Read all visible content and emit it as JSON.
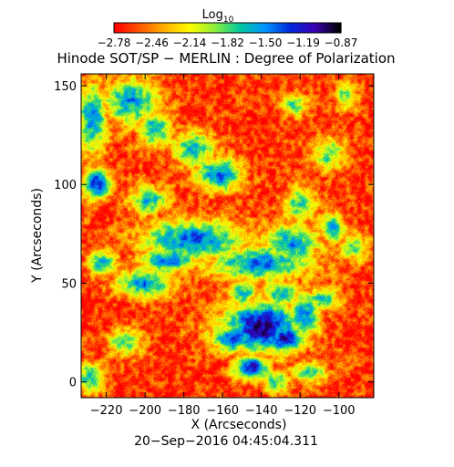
{
  "chart_data": {
    "type": "heatmap",
    "title": "Hinode SOT/SP − MERLIN : Degree of Polarization",
    "colorbar": {
      "label_base": "Log",
      "label_sub": "10",
      "tick_labels": [
        "−2.78",
        "−2.46",
        "−2.14",
        "−1.82",
        "−1.50",
        "−1.19",
        "−0.87"
      ],
      "range": [
        -2.78,
        -0.87
      ],
      "colormap": [
        "#ff0000",
        "#ff5a00",
        "#ffb400",
        "#ffff00",
        "#8cf03c",
        "#00c8a0",
        "#0096ff",
        "#0028dc",
        "#3c00b4",
        "#000000"
      ]
    },
    "xlabel": "X (Arcseconds)",
    "ylabel": "Y (Arcseconds)",
    "xlim": [
      -233,
      -82
    ],
    "ylim": [
      -8,
      156
    ],
    "xticks": [
      -220,
      -200,
      -180,
      -160,
      -140,
      -120,
      -100
    ],
    "xtick_labels": [
      "−220",
      "−200",
      "−180",
      "−160",
      "−140",
      "−120",
      "−100"
    ],
    "yticks": [
      0,
      50,
      100,
      150
    ],
    "ytick_labels": [
      "0",
      "50",
      "100",
      "150"
    ],
    "background_level": -2.65,
    "structures": [
      {
        "x": -140,
        "y": 28,
        "sx": 14,
        "sy": 9,
        "level": -1.05
      },
      {
        "x": -128,
        "y": 22,
        "sx": 7,
        "sy": 5,
        "level": -1.15
      },
      {
        "x": -155,
        "y": 22,
        "sx": 8,
        "sy": 5,
        "level": -1.4
      },
      {
        "x": -145,
        "y": 7,
        "sx": 6,
        "sy": 4,
        "level": -1.1
      },
      {
        "x": -175,
        "y": 72,
        "sx": 18,
        "sy": 7,
        "level": -1.4
      },
      {
        "x": -140,
        "y": 60,
        "sx": 18,
        "sy": 6,
        "level": -1.45
      },
      {
        "x": -125,
        "y": 70,
        "sx": 10,
        "sy": 7,
        "level": -1.5
      },
      {
        "x": -188,
        "y": 62,
        "sx": 10,
        "sy": 5,
        "level": -1.5
      },
      {
        "x": -200,
        "y": 50,
        "sx": 10,
        "sy": 5,
        "level": -1.55
      },
      {
        "x": -162,
        "y": 105,
        "sx": 8,
        "sy": 6,
        "level": -1.4
      },
      {
        "x": -225,
        "y": 100,
        "sx": 5,
        "sy": 5,
        "level": -1.2
      },
      {
        "x": -227,
        "y": 133,
        "sx": 5,
        "sy": 12,
        "level": -1.5
      },
      {
        "x": -207,
        "y": 142,
        "sx": 10,
        "sy": 8,
        "level": -1.55
      },
      {
        "x": -195,
        "y": 128,
        "sx": 6,
        "sy": 6,
        "level": -1.6
      },
      {
        "x": -175,
        "y": 118,
        "sx": 8,
        "sy": 6,
        "level": -1.65
      },
      {
        "x": -198,
        "y": 92,
        "sx": 7,
        "sy": 5,
        "level": -1.7
      },
      {
        "x": -222,
        "y": 60,
        "sx": 5,
        "sy": 4,
        "level": -1.55
      },
      {
        "x": -210,
        "y": 20,
        "sx": 6,
        "sy": 5,
        "level": -1.8
      },
      {
        "x": -228,
        "y": 2,
        "sx": 5,
        "sy": 5,
        "level": -1.6
      },
      {
        "x": -118,
        "y": 34,
        "sx": 6,
        "sy": 8,
        "level": -1.55
      },
      {
        "x": -108,
        "y": 42,
        "sx": 6,
        "sy": 4,
        "level": -1.7
      },
      {
        "x": -130,
        "y": 45,
        "sx": 6,
        "sy": 4,
        "level": -1.55
      },
      {
        "x": -150,
        "y": 45,
        "sx": 5,
        "sy": 4,
        "level": -1.6
      },
      {
        "x": -103,
        "y": 78,
        "sx": 4,
        "sy": 5,
        "level": -1.5
      },
      {
        "x": -120,
        "y": 90,
        "sx": 6,
        "sy": 6,
        "level": -1.75
      },
      {
        "x": -133,
        "y": 0,
        "sx": 5,
        "sy": 4,
        "level": -1.7
      },
      {
        "x": -115,
        "y": 5,
        "sx": 6,
        "sy": 4,
        "level": -1.8
      },
      {
        "x": -105,
        "y": 115,
        "sx": 6,
        "sy": 6,
        "level": -1.85
      },
      {
        "x": -92,
        "y": 68,
        "sx": 5,
        "sy": 5,
        "level": -1.85
      },
      {
        "x": -96,
        "y": 145,
        "sx": 4,
        "sy": 5,
        "level": -1.9
      },
      {
        "x": -123,
        "y": 140,
        "sx": 5,
        "sy": 4,
        "level": -1.85
      }
    ]
  },
  "footer": {
    "timestamp": "20−Sep−2016 04:45:04.311"
  }
}
